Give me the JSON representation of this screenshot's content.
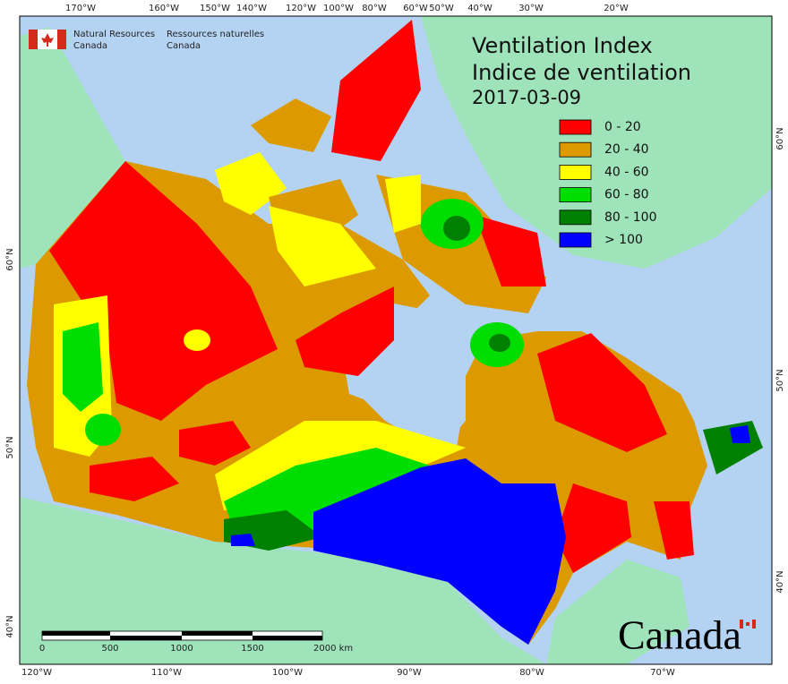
{
  "header": {
    "agency_en": [
      "Natural Resources",
      "Canada"
    ],
    "agency_fr": [
      "Ressources naturelles",
      "Canada"
    ]
  },
  "title": [
    "Ventilation Index",
    "Indice de ventilation",
    "2017-03-09"
  ],
  "legend": [
    {
      "label": "0 - 20",
      "color": "#ff0000"
    },
    {
      "label": "20 - 40",
      "color": "#dc9a00"
    },
    {
      "label": "40 - 60",
      "color": "#ffff00"
    },
    {
      "label": "60 - 80",
      "color": "#00dd00"
    },
    {
      "label": "80 - 100",
      "color": "#008000"
    },
    {
      "label": "> 100",
      "color": "#0000ff"
    }
  ],
  "graticule": {
    "top": [
      "170°W",
      "160°W",
      "150°W",
      "140°W",
      "120°W",
      "100°W",
      "80°W",
      "60°W",
      "50°W",
      "40°W",
      "30°W",
      "20°W"
    ],
    "bottom": [
      "120°W",
      "110°W",
      "100°W",
      "90°W",
      "80°W",
      "70°W"
    ],
    "left": [
      "60°N",
      "50°N",
      "40°N"
    ],
    "right": [
      "60°N",
      "50°N",
      "40°N"
    ]
  },
  "scale_bar": [
    "0",
    "500",
    "1000",
    "1500",
    "2000 km"
  ],
  "wordmark": "Canada"
}
